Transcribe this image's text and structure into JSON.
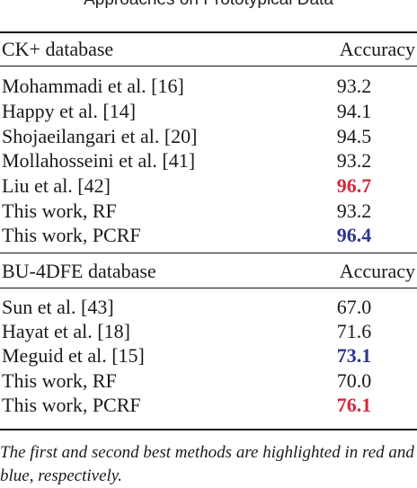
{
  "caption": "Approaches on Prototypical Data",
  "sections": [
    {
      "database": "CK+ database",
      "metric": "Accuracy",
      "rows": [
        {
          "method": "Mohammadi et al. [16]",
          "accuracy": "93.2",
          "rank": ""
        },
        {
          "method": "Happy et al. [14]",
          "accuracy": "94.1",
          "rank": ""
        },
        {
          "method": "Shojaeilangari et al. [20]",
          "accuracy": "94.5",
          "rank": ""
        },
        {
          "method": "Mollahosseini et al. [41]",
          "accuracy": "93.2",
          "rank": ""
        },
        {
          "method": "Liu et al. [42]",
          "accuracy": "96.7",
          "rank": "first"
        },
        {
          "method": "This work, RF",
          "accuracy": "93.2",
          "rank": ""
        },
        {
          "method": "This work, PCRF",
          "accuracy": "96.4",
          "rank": "second"
        }
      ]
    },
    {
      "database": "BU-4DFE database",
      "metric": "Accuracy",
      "rows": [
        {
          "method": "Sun et al. [43]",
          "accuracy": "67.0",
          "rank": ""
        },
        {
          "method": "Hayat et al. [18]",
          "accuracy": "71.6",
          "rank": ""
        },
        {
          "method": "Meguid et al. [15]",
          "accuracy": "73.1",
          "rank": "second"
        },
        {
          "method": "This work, RF",
          "accuracy": "70.0",
          "rank": ""
        },
        {
          "method": "This work, PCRF",
          "accuracy": "76.1",
          "rank": "first"
        }
      ]
    }
  ],
  "footnote": "The first and second best methods are highlighted in red and blue, respectively.",
  "colors": {
    "first_best": "#d42a3a",
    "second_best": "#2d3590"
  }
}
